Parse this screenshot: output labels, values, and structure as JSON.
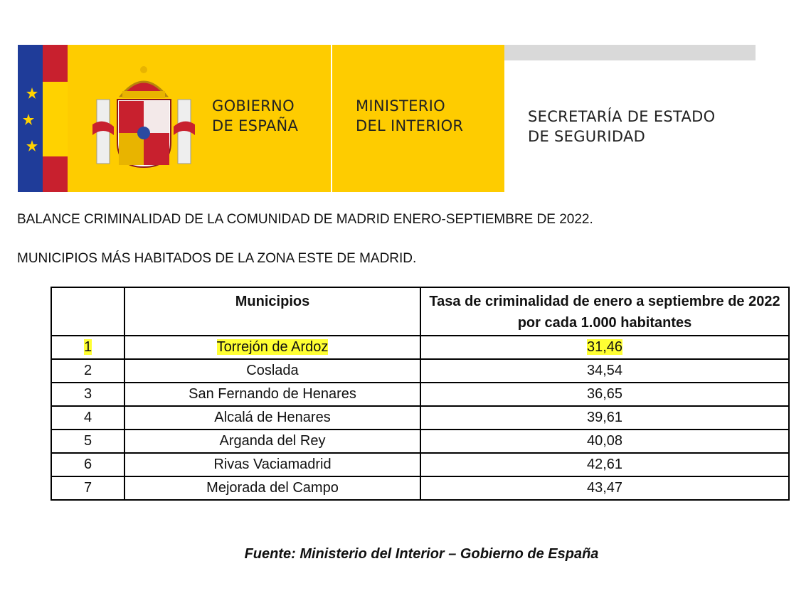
{
  "header": {
    "government": [
      "GOBIERNO",
      "DE ESPAÑA"
    ],
    "ministry": [
      "MINISTERIO",
      "DEL INTERIOR"
    ],
    "secretariat": [
      "SECRETARÍA DE ESTADO",
      "DE SEGURIDAD"
    ]
  },
  "title": "BALANCE CRIMINALIDAD DE LA COMUNIDAD DE MADRID ENERO-SEPTIEMBRE DE 2022.",
  "subtitle": "MUNICIPIOS MÁS HABITADOS DE LA ZONA ESTE DE MADRID.",
  "table": {
    "columns": [
      "Municipios",
      "Tasa de criminalidad de enero a septiembre de 2022 por cada 1.000 habitantes"
    ],
    "rows": [
      [
        "1",
        "Torrejón de Ardoz",
        "31,46"
      ],
      [
        "2",
        "Coslada",
        "34,54"
      ],
      [
        "3",
        "San Fernando de Henares",
        "36,65"
      ],
      [
        "4",
        "Alcalá de Henares",
        "39,61"
      ],
      [
        "5",
        "Arganda del Rey",
        "40,08"
      ],
      [
        "6",
        "Rivas Vaciamadrid",
        "42,61"
      ],
      [
        "7",
        "Mejorada del Campo",
        "43,47"
      ]
    ],
    "highlight_row": 0
  },
  "source": "Fuente: Ministerio del Interior – Gobierno de España"
}
